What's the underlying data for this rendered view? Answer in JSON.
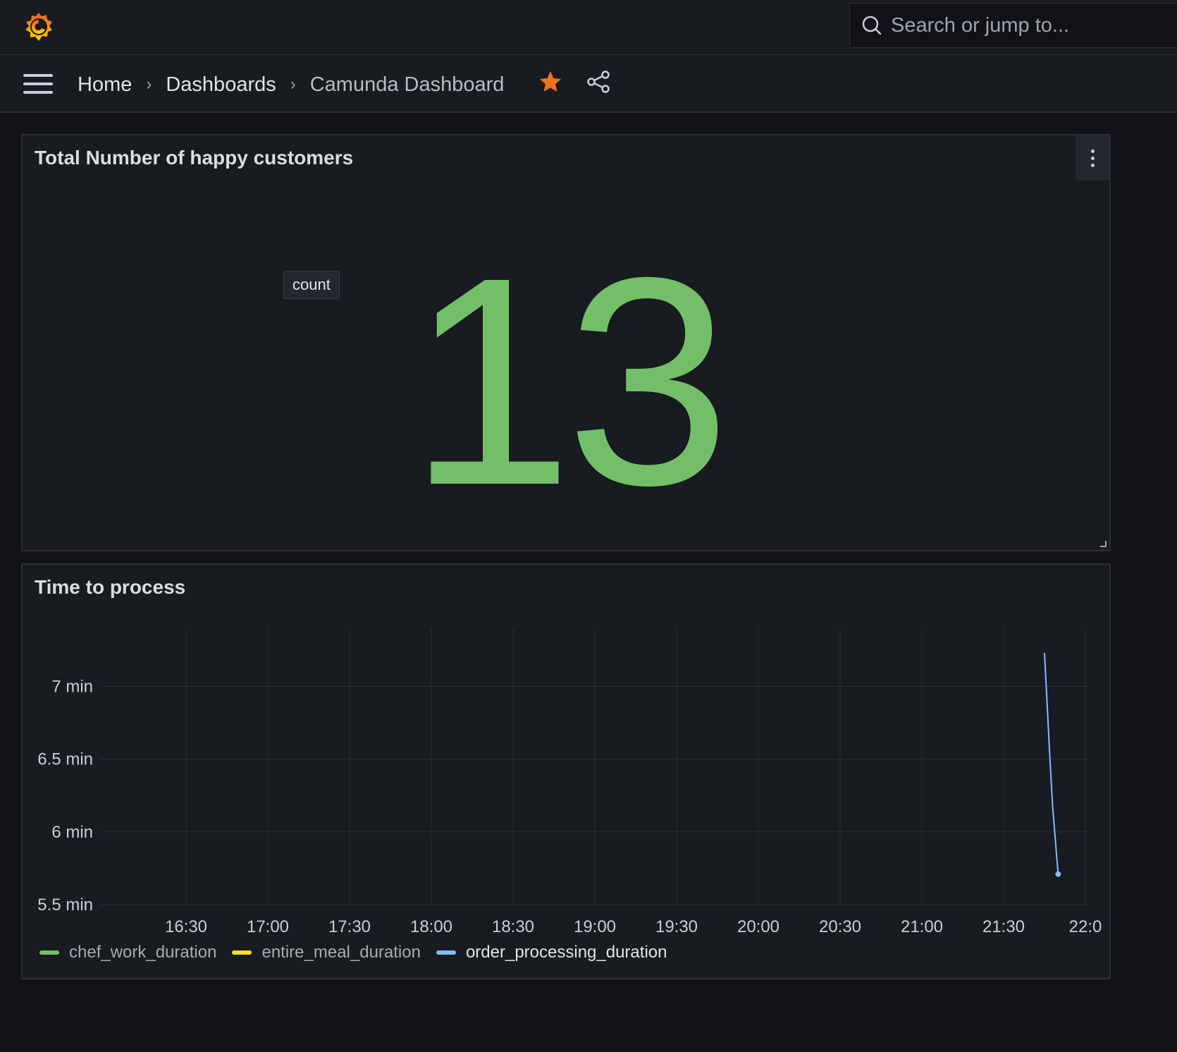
{
  "header": {
    "search_placeholder": "Search or jump to..."
  },
  "breadcrumb": {
    "home": "Home",
    "dashboards": "Dashboards",
    "current": "Camunda Dashboard",
    "separator": "›"
  },
  "icons": {
    "logo": "grafana-logo-icon",
    "search": "search-icon",
    "menu": "hamburger-menu-icon",
    "star": "star-icon",
    "share": "share-icon",
    "panel_menu": "kebab-menu-icon"
  },
  "colors": {
    "background": "#111217",
    "panel": "#181b1f",
    "star": "#f2711c",
    "stat_value": "#73bf69"
  },
  "stat_panel": {
    "title": "Total Number of happy customers",
    "value": "13",
    "tooltip": "count"
  },
  "timeseries_panel": {
    "title": "Time to process",
    "chart_data": {
      "type": "line",
      "x_ticks": [
        "16:30",
        "17:00",
        "17:30",
        "18:00",
        "18:30",
        "19:00",
        "19:30",
        "20:00",
        "20:30",
        "21:00",
        "21:30",
        "22:0"
      ],
      "y_ticks": [
        {
          "value": 7,
          "label": "7 min"
        },
        {
          "value": 6.5,
          "label": "6.5 min"
        },
        {
          "value": 6,
          "label": "6 min"
        },
        {
          "value": 5.5,
          "label": "5.5 min"
        }
      ],
      "ylim": [
        5.5,
        7.4
      ],
      "grid": true,
      "legend_position": "bottom-left",
      "series": [
        {
          "name": "chef_work_duration",
          "color": "#73bf69",
          "points": []
        },
        {
          "name": "entire_meal_duration",
          "color": "#fade2a",
          "points": []
        },
        {
          "name": "order_processing_duration",
          "color": "#8ab8ff",
          "points": [
            {
              "x": "21:45",
              "y": 7.23
            },
            {
              "x": "21:47",
              "y": 6.5
            },
            {
              "x": "21:48",
              "y": 6.17
            },
            {
              "x": "21:50",
              "y": 5.71
            }
          ]
        }
      ]
    }
  }
}
